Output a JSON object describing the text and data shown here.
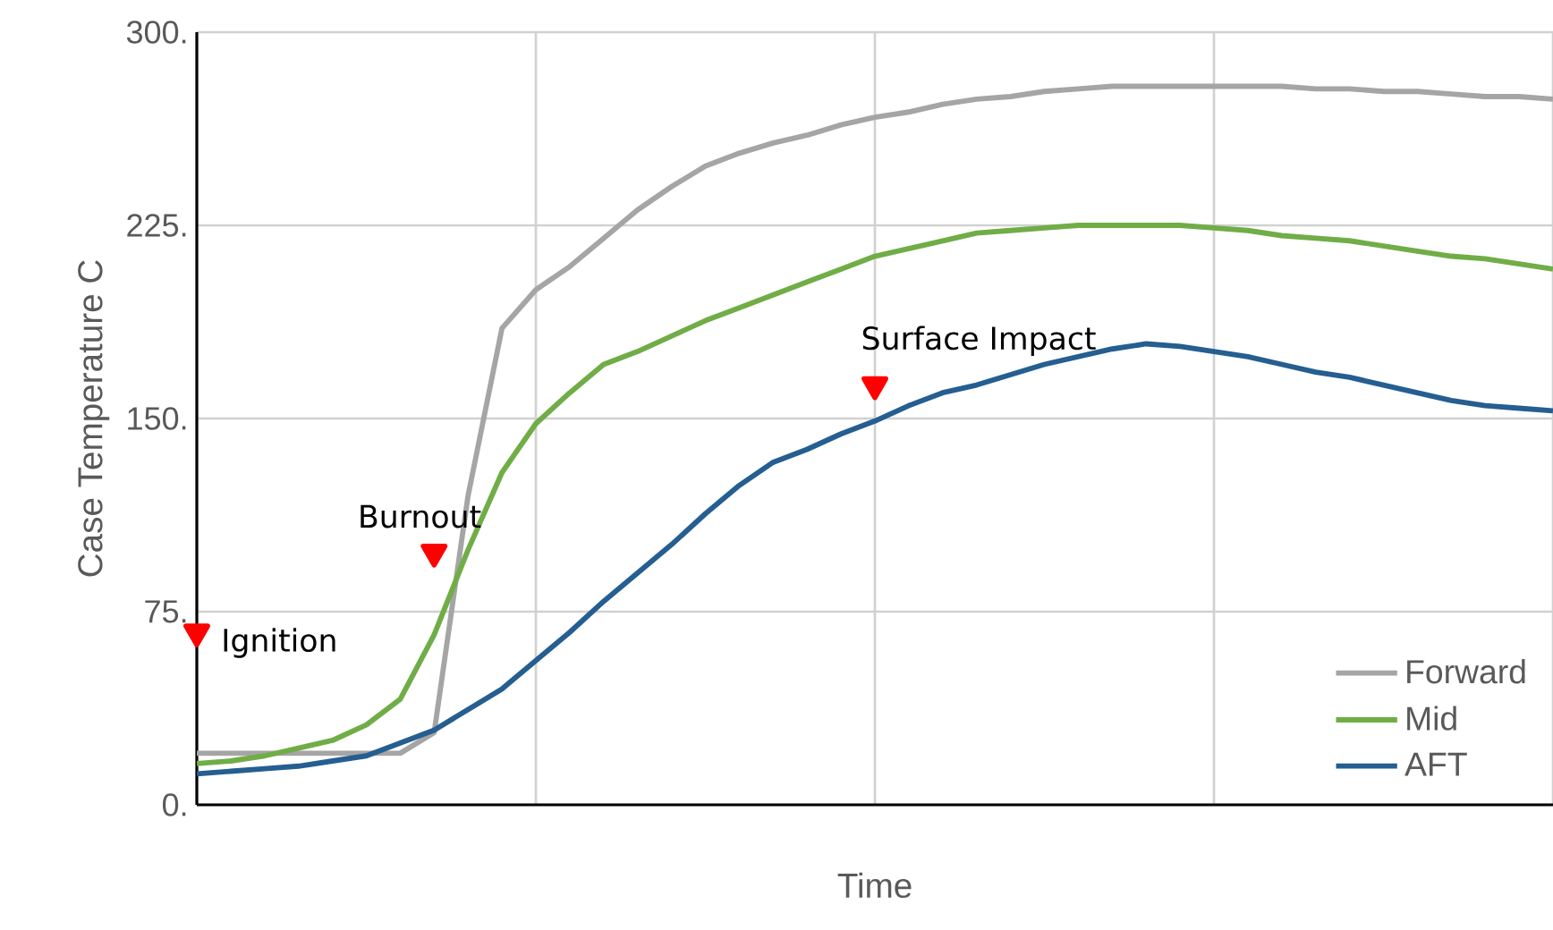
{
  "chart_data": {
    "type": "line",
    "xlabel": "Time",
    "ylabel": "Case Temperature C",
    "categories": [
      null,
      null,
      null,
      null,
      null,
      null,
      null,
      null,
      null,
      null,
      null,
      null,
      null,
      null,
      null,
      null,
      null,
      null,
      null,
      null,
      null,
      null,
      null,
      null,
      null,
      null,
      null,
      null,
      null,
      null,
      null,
      null,
      null,
      null,
      null,
      null,
      null,
      null,
      null,
      null,
      null
    ],
    "ylim": [
      0,
      300
    ],
    "yticks": [
      {
        "value": 0,
        "label": "0."
      },
      {
        "value": 75,
        "label": "75."
      },
      {
        "value": 150,
        "label": "150."
      },
      {
        "value": 225,
        "label": "225."
      },
      {
        "value": 300,
        "label": "300."
      }
    ],
    "grid": true,
    "legend": "bottom right",
    "line_style": "solid",
    "marker": "none",
    "series": [
      {
        "name": "Forward",
        "color": "#a5a5a5",
        "values": [
          20,
          20,
          20,
          20,
          20,
          20,
          20,
          28,
          120,
          185,
          200,
          209,
          220,
          231,
          240,
          248,
          253,
          257,
          260,
          264,
          267,
          269,
          272,
          274,
          275,
          277,
          278,
          279,
          279,
          279,
          279,
          279,
          279,
          278,
          278,
          277,
          277,
          276,
          275,
          275,
          274
        ]
      },
      {
        "name": "Mid",
        "color": "#70ad47",
        "values": [
          16,
          17,
          19,
          22,
          25,
          31,
          41,
          66,
          99,
          129,
          148,
          160,
          171,
          176,
          182,
          188,
          193,
          198,
          203,
          208,
          213,
          216,
          219,
          222,
          223,
          224,
          225,
          225,
          225,
          225,
          224,
          223,
          221,
          220,
          219,
          217,
          215,
          213,
          212,
          210,
          208
        ]
      },
      {
        "name": "AFT",
        "color": "#255e91",
        "values": [
          12,
          13,
          14,
          15,
          17,
          19,
          24,
          29,
          37,
          45,
          56,
          67,
          79,
          90,
          101,
          113,
          124,
          133,
          138,
          144,
          149,
          155,
          160,
          163,
          167,
          171,
          174,
          177,
          179,
          178,
          176,
          174,
          171,
          168,
          166,
          163,
          160,
          157,
          155,
          154,
          153
        ]
      },
      {
        "type": "scatter",
        "marker": "triangle",
        "color": "#ff0000",
        "values": [
          67,
          null,
          null,
          null,
          null,
          null,
          null,
          98,
          null,
          null,
          null,
          null,
          null,
          null,
          null,
          null,
          null,
          null,
          null,
          null,
          163,
          null,
          null,
          null,
          null,
          null,
          null,
          null,
          null,
          null,
          null,
          null,
          null,
          null,
          null,
          null,
          null,
          null,
          null,
          null,
          null
        ]
      }
    ],
    "annotations": [
      "Ignition",
      "Burnout",
      "Surface Impact"
    ]
  }
}
